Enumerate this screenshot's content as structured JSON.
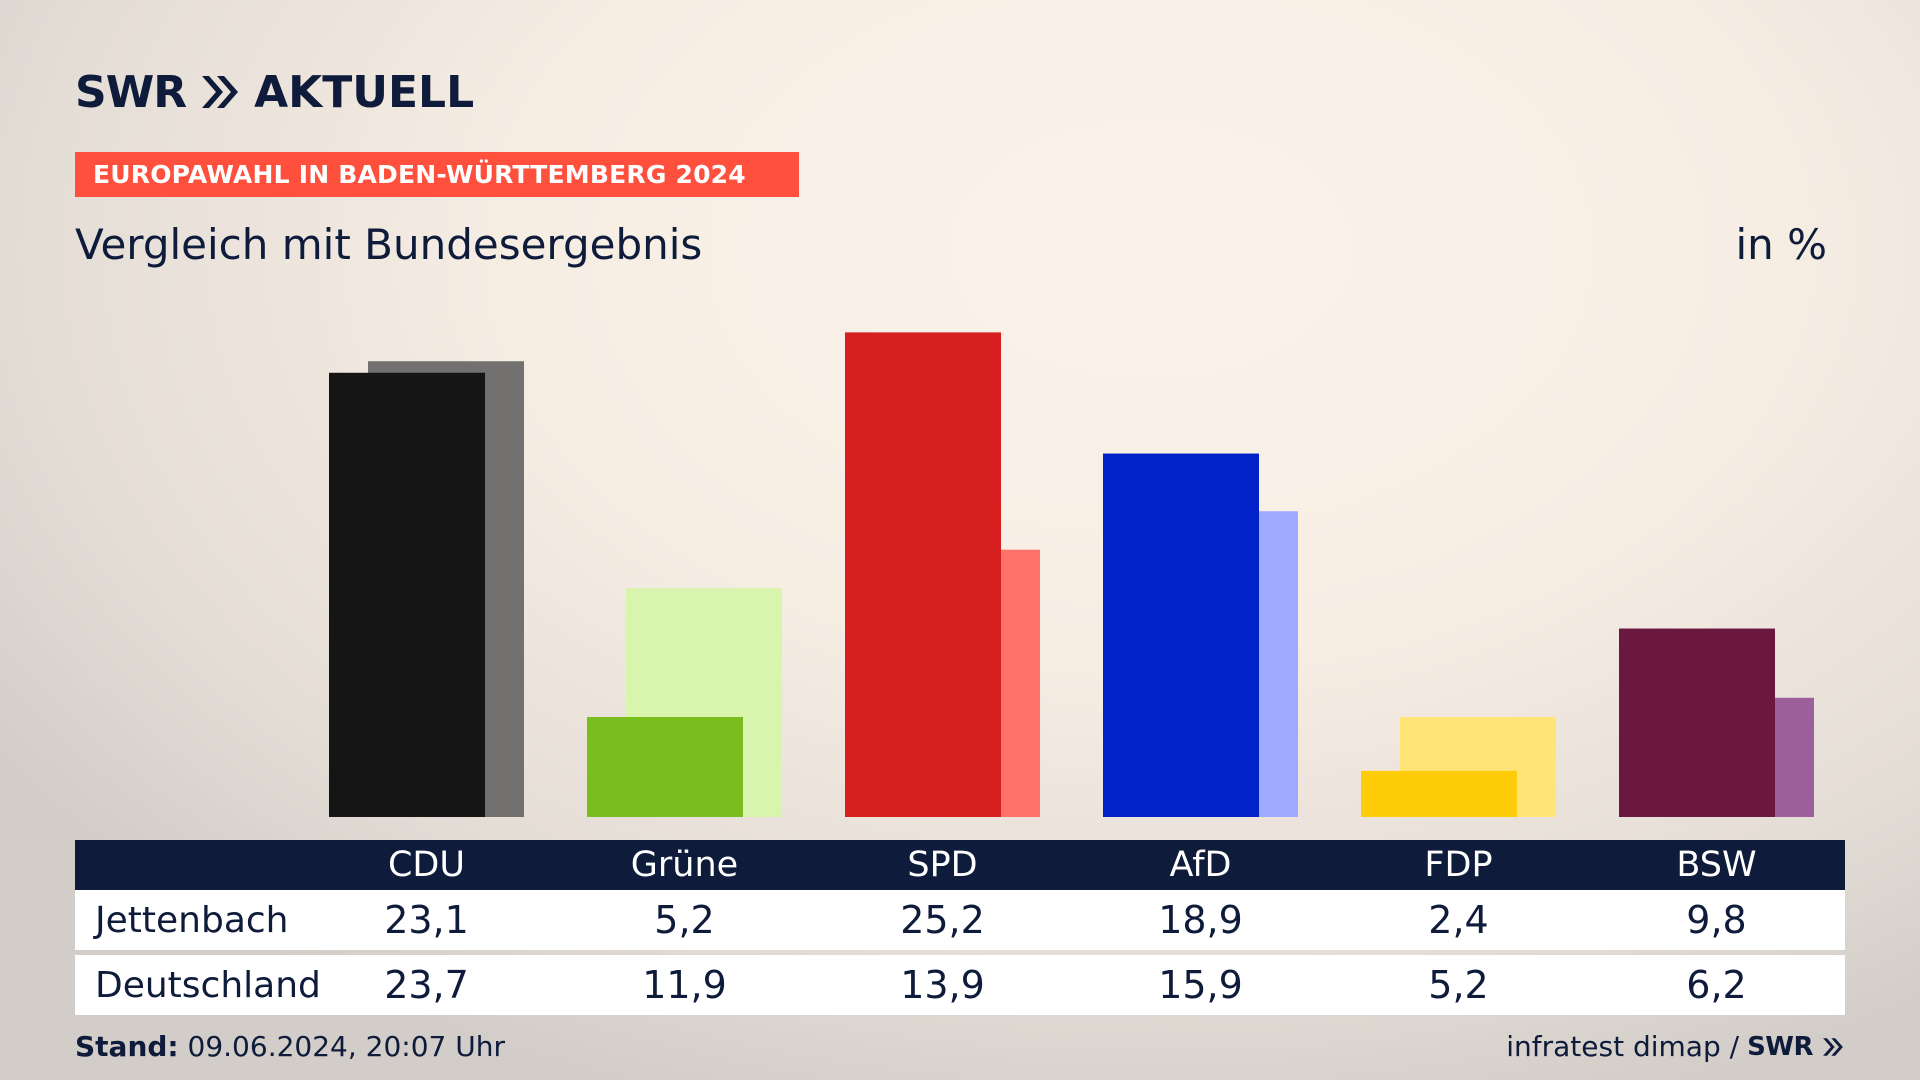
{
  "brand": {
    "logo_left": "SWR",
    "logo_right": "AKTUELL"
  },
  "banner": "EUROPAWAHL IN BADEN-WÜRTTEMBERG 2024",
  "subtitle": "Vergleich mit Bundesergebnis",
  "unit": "in %",
  "chart_data": {
    "type": "bar",
    "categories": [
      "CDU",
      "Grüne",
      "SPD",
      "AfD",
      "FDP",
      "BSW"
    ],
    "series": [
      {
        "name": "Jettenbach",
        "values": [
          23.1,
          5.2,
          25.2,
          18.9,
          2.4,
          9.8
        ],
        "labels": [
          "23,1",
          "5,2",
          "25,2",
          "18,9",
          "2,4",
          "9,8"
        ]
      },
      {
        "name": "Deutschland",
        "values": [
          23.7,
          11.9,
          13.9,
          15.9,
          5.2,
          6.2
        ],
        "labels": [
          "23,7",
          "11,9",
          "13,9",
          "15,9",
          "5,2",
          "6,2"
        ]
      }
    ],
    "ylim": [
      0,
      26
    ],
    "colors": {
      "primary": [
        "#151515",
        "#7abd1e",
        "#d61f1f",
        "#0022c8",
        "#ffcc0a",
        "#6a1840"
      ],
      "secondary": [
        "#737170",
        "#d8f4ad",
        "#ff7269",
        "#9daaff",
        "#ffe478",
        "#9c5f9b"
      ]
    },
    "grid": false,
    "legend": "table-below"
  },
  "footer": {
    "stand_label": "Stand:",
    "stand_value": "09.06.2024, 20:07 Uhr",
    "source": "infratest dimap /",
    "source_brand": "SWR"
  }
}
